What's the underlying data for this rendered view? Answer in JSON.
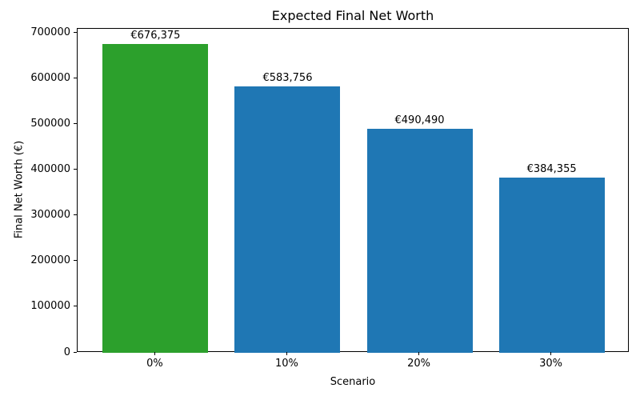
{
  "chart_data": {
    "type": "bar",
    "title": "Expected Final Net Worth",
    "xlabel": "Scenario",
    "ylabel": "Final Net Worth (€)",
    "categories": [
      "0%",
      "10%",
      "20%",
      "30%"
    ],
    "values": [
      676375,
      583756,
      490490,
      384355
    ],
    "bar_labels": [
      "€676,375",
      "€583,756",
      "€490,490",
      "€384,355"
    ],
    "bar_colors": [
      "#2ca02c",
      "#1f77b4",
      "#1f77b4",
      "#1f77b4"
    ],
    "yticks": [
      0,
      100000,
      200000,
      300000,
      400000,
      500000,
      600000,
      700000
    ],
    "ylim": [
      0,
      710194
    ],
    "xlim": [
      -0.59,
      3.59
    ],
    "bar_width": 0.8,
    "grid": false,
    "legend_position": "none"
  }
}
